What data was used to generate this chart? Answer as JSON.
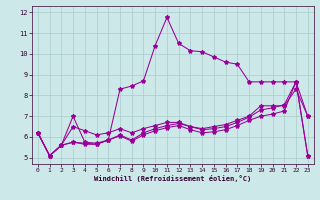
{
  "xlabel": "Windchill (Refroidissement éolien,°C)",
  "bg_color": "#cce8e8",
  "line_color": "#990099",
  "grid_color": "#aacccc",
  "xlim": [
    -0.5,
    23.5
  ],
  "ylim": [
    4.7,
    12.3
  ],
  "yticks": [
    5,
    6,
    7,
    8,
    9,
    10,
    11,
    12
  ],
  "xticks": [
    0,
    1,
    2,
    3,
    4,
    5,
    6,
    7,
    8,
    9,
    10,
    11,
    12,
    13,
    14,
    15,
    16,
    17,
    18,
    19,
    20,
    21,
    22,
    23
  ],
  "series": [
    [
      6.2,
      5.1,
      5.6,
      7.0,
      5.75,
      5.7,
      5.85,
      8.3,
      8.45,
      8.7,
      10.4,
      11.75,
      10.5,
      10.15,
      10.1,
      9.85,
      9.6,
      9.5,
      8.65,
      8.65,
      8.65,
      8.65,
      8.65,
      7.0
    ],
    [
      6.2,
      5.1,
      5.6,
      6.5,
      6.3,
      6.1,
      6.2,
      6.4,
      6.2,
      6.4,
      6.55,
      6.7,
      6.7,
      6.5,
      6.4,
      6.5,
      6.6,
      6.8,
      7.0,
      7.5,
      7.5,
      7.5,
      8.3,
      7.0
    ],
    [
      6.2,
      5.1,
      5.6,
      5.75,
      5.7,
      5.65,
      5.85,
      6.1,
      5.85,
      6.2,
      6.4,
      6.55,
      6.65,
      6.5,
      6.35,
      6.4,
      6.5,
      6.7,
      6.95,
      7.3,
      7.4,
      7.55,
      8.65,
      5.1
    ],
    [
      6.2,
      5.1,
      5.6,
      5.75,
      5.65,
      5.65,
      5.85,
      6.05,
      5.8,
      6.1,
      6.3,
      6.45,
      6.55,
      6.35,
      6.2,
      6.25,
      6.35,
      6.55,
      6.8,
      7.0,
      7.1,
      7.25,
      8.65,
      5.1
    ]
  ]
}
